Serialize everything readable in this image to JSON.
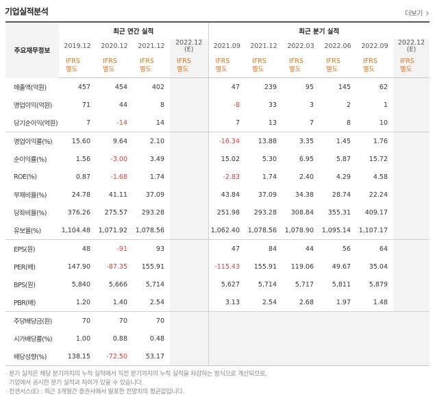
{
  "header": {
    "title": "기업실적분석",
    "more_label": "더보기"
  },
  "table": {
    "row_header": "주요재무정보",
    "annual_group": "최근 연간 실적",
    "quarter_group": "최근 분기 실적",
    "periods": [
      "2019.12",
      "2020.12",
      "2021.12",
      "2022.12\n(E)",
      "2021.09",
      "2021.12",
      "2022.03",
      "2022.06",
      "2022.09",
      "2022.12 (E)"
    ],
    "ifrs": [
      "IFRS\n별도",
      "IFRS\n별도",
      "IFRS\n별도",
      "IFRS\n별도",
      "IFRS\n별도",
      "IFRS\n별도",
      "IFRS\n별도",
      "IFRS\n별도",
      "IFRS\n별도",
      "IFRS\n별도"
    ],
    "rows": [
      {
        "label": "매출액(억원)",
        "values": [
          "457",
          "454",
          "402",
          "",
          "47",
          "239",
          "95",
          "145",
          "62",
          ""
        ]
      },
      {
        "label": "영업이익(억원)",
        "values": [
          "71",
          "44",
          "8",
          "",
          "-8",
          "33",
          "3",
          "2",
          "1",
          ""
        ]
      },
      {
        "label": "당기순이익(억원)",
        "values": [
          "7",
          "-14",
          "14",
          "",
          "7",
          "13",
          "7",
          "8",
          "10",
          ""
        ]
      },
      {
        "label": "영업이익률(%)",
        "values": [
          "15.60",
          "9.64",
          "2.10",
          "",
          "-16.34",
          "13.88",
          "3.35",
          "1.45",
          "1.76",
          ""
        ]
      },
      {
        "label": "순이익률(%)",
        "values": [
          "1.56",
          "-3.00",
          "3.49",
          "",
          "15.02",
          "5.30",
          "6.95",
          "5.87",
          "15.72",
          ""
        ]
      },
      {
        "label": "ROE(%)",
        "values": [
          "0.87",
          "-1.68",
          "1.74",
          "",
          "-2.83",
          "1.74",
          "2.40",
          "4.29",
          "4.58",
          ""
        ]
      },
      {
        "label": "부채비율(%)",
        "values": [
          "24.78",
          "41.11",
          "37.09",
          "",
          "43.84",
          "37.09",
          "34.38",
          "28.74",
          "22.24",
          ""
        ]
      },
      {
        "label": "당좌비율(%)",
        "values": [
          "376.26",
          "275.57",
          "293.28",
          "",
          "251.98",
          "293.28",
          "308.84",
          "355.31",
          "409.17",
          ""
        ]
      },
      {
        "label": "유보율(%)",
        "values": [
          "1,104.48",
          "1,071.92",
          "1,078.56",
          "",
          "1,062.40",
          "1,078.56",
          "1,078.90",
          "1,095.14",
          "1,107.17",
          ""
        ]
      },
      {
        "label": "EPS(원)",
        "values": [
          "48",
          "-91",
          "93",
          "",
          "47",
          "84",
          "44",
          "56",
          "64",
          ""
        ]
      },
      {
        "label": "PER(배)",
        "values": [
          "147.90",
          "-87.35",
          "155.91",
          "",
          "-115.43",
          "155.91",
          "119.06",
          "49.67",
          "35.04",
          ""
        ]
      },
      {
        "label": "BPS(원)",
        "values": [
          "5,840",
          "5,666",
          "5,714",
          "",
          "5,627",
          "5,714",
          "5,717",
          "5,811",
          "5,879",
          ""
        ]
      },
      {
        "label": "PBR(배)",
        "values": [
          "1.20",
          "1.40",
          "2.54",
          "",
          "3.13",
          "2.54",
          "2.68",
          "1.97",
          "1.48",
          ""
        ]
      },
      {
        "label": "주당배당금(원)",
        "values": [
          "70",
          "70",
          "70",
          "",
          "",
          "",
          "",
          "",
          "",
          ""
        ]
      },
      {
        "label": "시가배당률(%)",
        "values": [
          "1.00",
          "0.88",
          "0.48",
          "",
          "",
          "",
          "",
          "",
          "",
          ""
        ]
      },
      {
        "label": "배당성향(%)",
        "values": [
          "138.15",
          "-72.50",
          "53.17",
          "",
          "",
          "",
          "",
          "",
          "",
          ""
        ]
      }
    ]
  },
  "notes": [
    "· 분기 실적은 해당 분기까지의 누적 실적에서 직전 분기까지의 누적 실적을 차감하는 방식으로 계산되므로,",
    "  기업에서 공시한 분기 실적과 차이가 있을 수 있습니다.",
    "· 컨센서스(E) : 최근 3개월간 증권사에서 발표한 전망치의 평균값입니다."
  ],
  "colors": {
    "negative": "#e03c31",
    "ifrs": "#e8731a",
    "shade": "#f3f3f3"
  }
}
